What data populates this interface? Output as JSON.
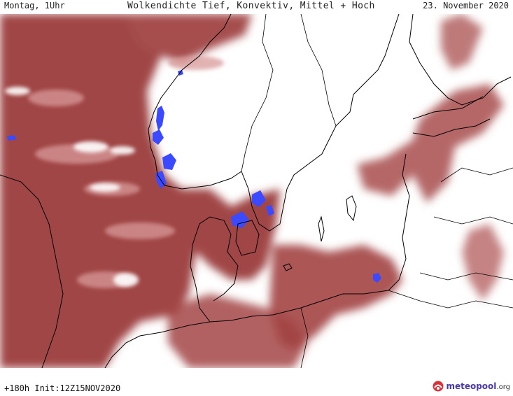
{
  "header": {
    "left": "Montag, 1Uhr",
    "center": "Wolkendichte  Tief, Konvektiv, Mittel + Hoch",
    "right": "23. November 2020"
  },
  "footer": {
    "init": "+180h  Init:12Z15NOV2020",
    "logo_main": "meteopool",
    "logo_tld": ".org"
  },
  "colors": {
    "cloud_dark": "#9c3b3b",
    "cloud_mid": "#b25a5a",
    "cloud_light": "#c98484",
    "convective": "#3b49ff",
    "coast": "#000000"
  },
  "icons": {
    "logo": "meteopool-logo-icon"
  }
}
